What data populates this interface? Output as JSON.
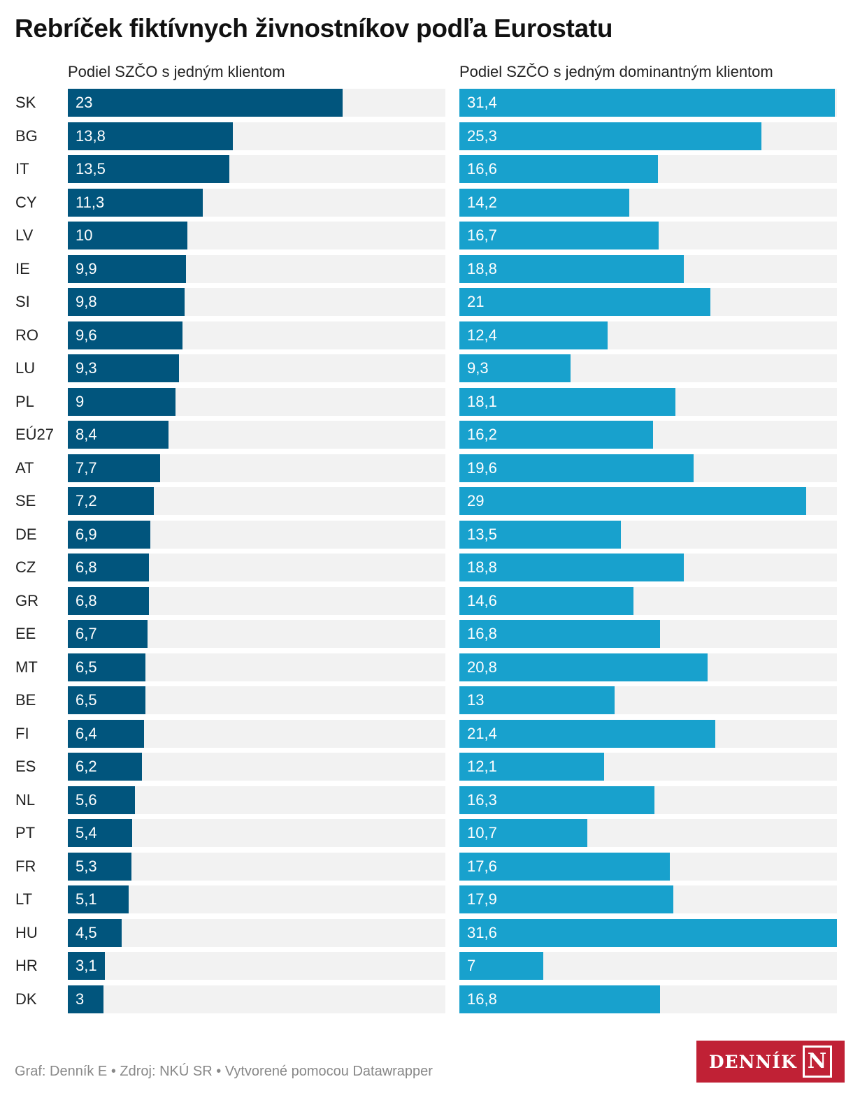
{
  "chart_data": {
    "type": "bar",
    "title": "Rebríček fiktívnych živnostníkov podľa Eurostatu",
    "xlim": [
      0,
      31.6
    ],
    "categories": [
      "SK",
      "BG",
      "IT",
      "CY",
      "LV",
      "IE",
      "SI",
      "RO",
      "LU",
      "PL",
      "EÚ27",
      "AT",
      "SE",
      "DE",
      "CZ",
      "GR",
      "EE",
      "MT",
      "BE",
      "FI",
      "ES",
      "NL",
      "PT",
      "FR",
      "LT",
      "HU",
      "HR",
      "DK"
    ],
    "series": [
      {
        "name": "Podiel SZČO s jedným klientom",
        "color": "#01557d",
        "values": [
          23,
          13.8,
          13.5,
          11.3,
          10,
          9.9,
          9.8,
          9.6,
          9.3,
          9,
          8.4,
          7.7,
          7.2,
          6.9,
          6.8,
          6.8,
          6.7,
          6.5,
          6.5,
          6.4,
          6.2,
          5.6,
          5.4,
          5.3,
          5.1,
          4.5,
          3.1,
          3
        ]
      },
      {
        "name": "Podiel SZČO s jedným dominantným klientom",
        "color": "#18a1cd",
        "values": [
          31.4,
          25.3,
          16.6,
          14.2,
          16.7,
          18.8,
          21,
          12.4,
          9.3,
          18.1,
          16.2,
          19.6,
          29,
          13.5,
          18.8,
          14.6,
          16.8,
          20.8,
          13,
          21.4,
          12.1,
          16.3,
          10.7,
          17.6,
          17.9,
          31.6,
          7,
          16.8
        ]
      }
    ]
  },
  "footer": "Graf: Denník E • Zdroj: NKÚ SR • Vytvorené pomocou Datawrapper",
  "logo": {
    "text": "DENNÍK",
    "letter": "N"
  }
}
